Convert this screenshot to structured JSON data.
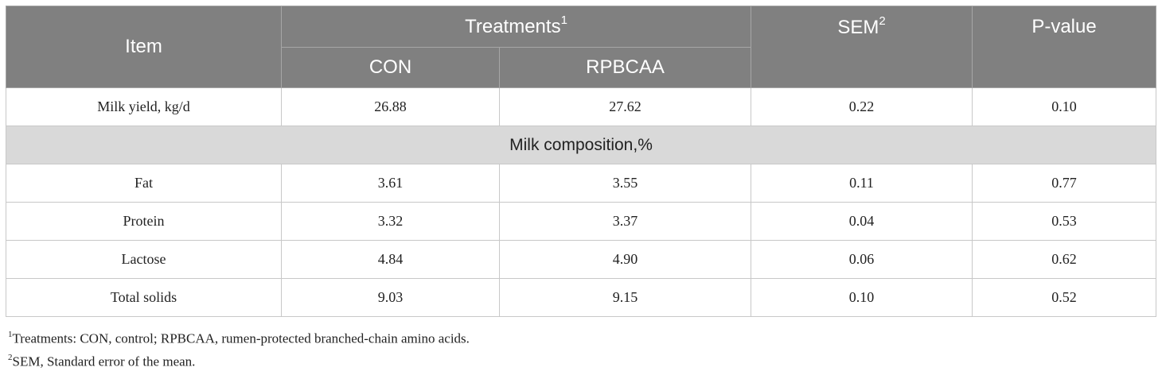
{
  "header": {
    "item": "Item",
    "treatments": "Treatments",
    "treatments_sup": "1",
    "sem": "SEM",
    "sem_sup": "2",
    "pvalue": "P-value",
    "con": "CON",
    "rpbcaa": "RPBCAA"
  },
  "rows": [
    {
      "item": "Milk yield, kg/d",
      "con": "26.88",
      "rpbcaa": "27.62",
      "sem": "0.22",
      "p": "0.10"
    }
  ],
  "section": "Milk composition,%",
  "composition_rows": [
    {
      "item": "Fat",
      "con": "3.61",
      "rpbcaa": "3.55",
      "sem": "0.11",
      "p": "0.77"
    },
    {
      "item": "Protein",
      "con": "3.32",
      "rpbcaa": "3.37",
      "sem": "0.04",
      "p": "0.53"
    },
    {
      "item": "Lactose",
      "con": "4.84",
      "rpbcaa": "4.90",
      "sem": "0.06",
      "p": "0.62"
    },
    {
      "item": "Total solids",
      "con": "9.03",
      "rpbcaa": "9.15",
      "sem": "0.10",
      "p": "0.52"
    }
  ],
  "footnotes": [
    {
      "mark": "1",
      "text": "Treatments: CON, control; RPBCAA, rumen-protected branched-chain amino acids."
    },
    {
      "mark": "2",
      "text": "SEM, Standard error of the mean."
    }
  ]
}
